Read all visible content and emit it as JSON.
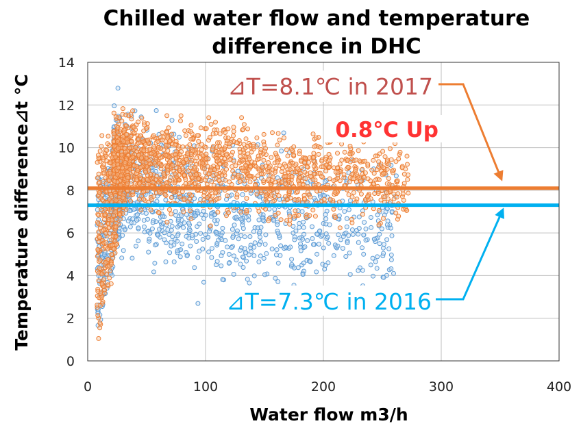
{
  "chart_data": {
    "type": "scatter",
    "title": [
      "Chilled water flow and temperature",
      "difference in DHC"
    ],
    "xlabel": "Water flow m3/h",
    "ylabel": "Temperature difference⊿t °C",
    "xlim": [
      0,
      400
    ],
    "ylim": [
      0,
      14
    ],
    "xticks": [
      "0",
      "100",
      "200",
      "300",
      "400"
    ],
    "yticks": [
      "0",
      "2",
      "4",
      "6",
      "8",
      "10",
      "12",
      "14"
    ],
    "grid": true,
    "series": [
      {
        "name": "2016",
        "color": "#5b9bd5",
        "mean_delta_t": 7.3
      },
      {
        "name": "2017",
        "color": "#ed7d31",
        "mean_delta_t": 8.1
      }
    ],
    "annotations": {
      "label_2017": "⊿T=8.1℃ in 2017",
      "label_2016": "⊿T=7.3℃ in 2016",
      "increase": "0.8℃ Up"
    }
  },
  "colors": {
    "orange": "#ed7d31",
    "blue_line": "#00b0f0",
    "blue_points": "#5b9bd5",
    "label_2017": "#c0504d",
    "increase": "#ff3333"
  }
}
